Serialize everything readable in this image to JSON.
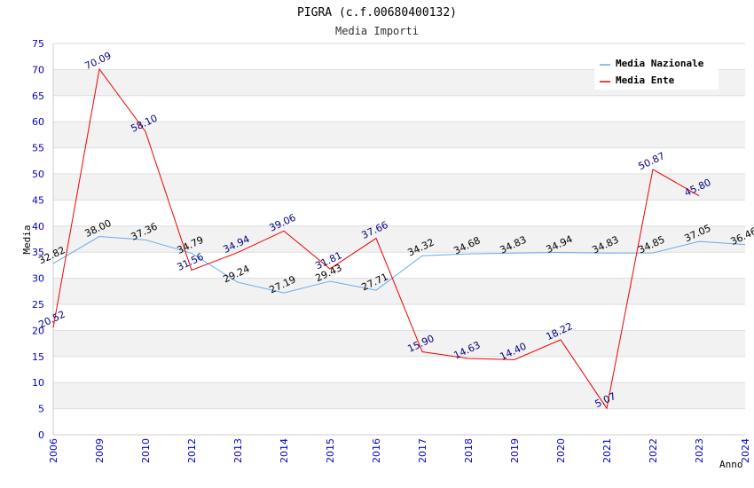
{
  "chart_data": {
    "type": "line",
    "title": "PIGRA (c.f.00680400132)",
    "subtitle": "Media Importi",
    "xlabel": "Anno",
    "ylabel": "Media",
    "ylim": [
      0,
      75
    ],
    "yticks": [
      0,
      5,
      10,
      15,
      20,
      25,
      30,
      35,
      40,
      45,
      50,
      55,
      60,
      65,
      70,
      75
    ],
    "categories": [
      "2006",
      "2009",
      "2010",
      "2012",
      "2013",
      "2014",
      "2015",
      "2016",
      "2017",
      "2018",
      "2019",
      "2020",
      "2021",
      "2022",
      "2023",
      "2024"
    ],
    "legend_position": "top-right",
    "series": [
      {
        "name": "Media Nazionale",
        "color": "#66aaee",
        "label_color": "#000000",
        "values": [
          32.82,
          38.0,
          37.36,
          34.79,
          29.24,
          27.19,
          29.43,
          27.71,
          34.32,
          34.68,
          34.83,
          34.94,
          34.83,
          34.85,
          37.05,
          36.46
        ],
        "labels": [
          "32.82",
          "38.00",
          "37.36",
          "34.79",
          "29.24",
          "27.19",
          "29.43",
          "27.71",
          "34.32",
          "34.68",
          "34.83",
          "34.94",
          "34.83",
          "34.85",
          "37.05",
          "36.46"
        ]
      },
      {
        "name": "Media Ente",
        "color": "#ee0000",
        "label_color": "#000080",
        "values": [
          20.52,
          70.09,
          58.1,
          31.56,
          34.94,
          39.06,
          31.81,
          37.66,
          15.9,
          14.63,
          14.4,
          18.22,
          5.07,
          50.87,
          45.8,
          null
        ],
        "labels": [
          "20.52",
          "70.09",
          "58.10",
          "31.56",
          "34.94",
          "39.06",
          "31.81",
          "37.66",
          "15.90",
          "14.63",
          "14.40",
          "18.22",
          "5.07",
          "50.87",
          "45.80",
          null
        ]
      }
    ]
  }
}
